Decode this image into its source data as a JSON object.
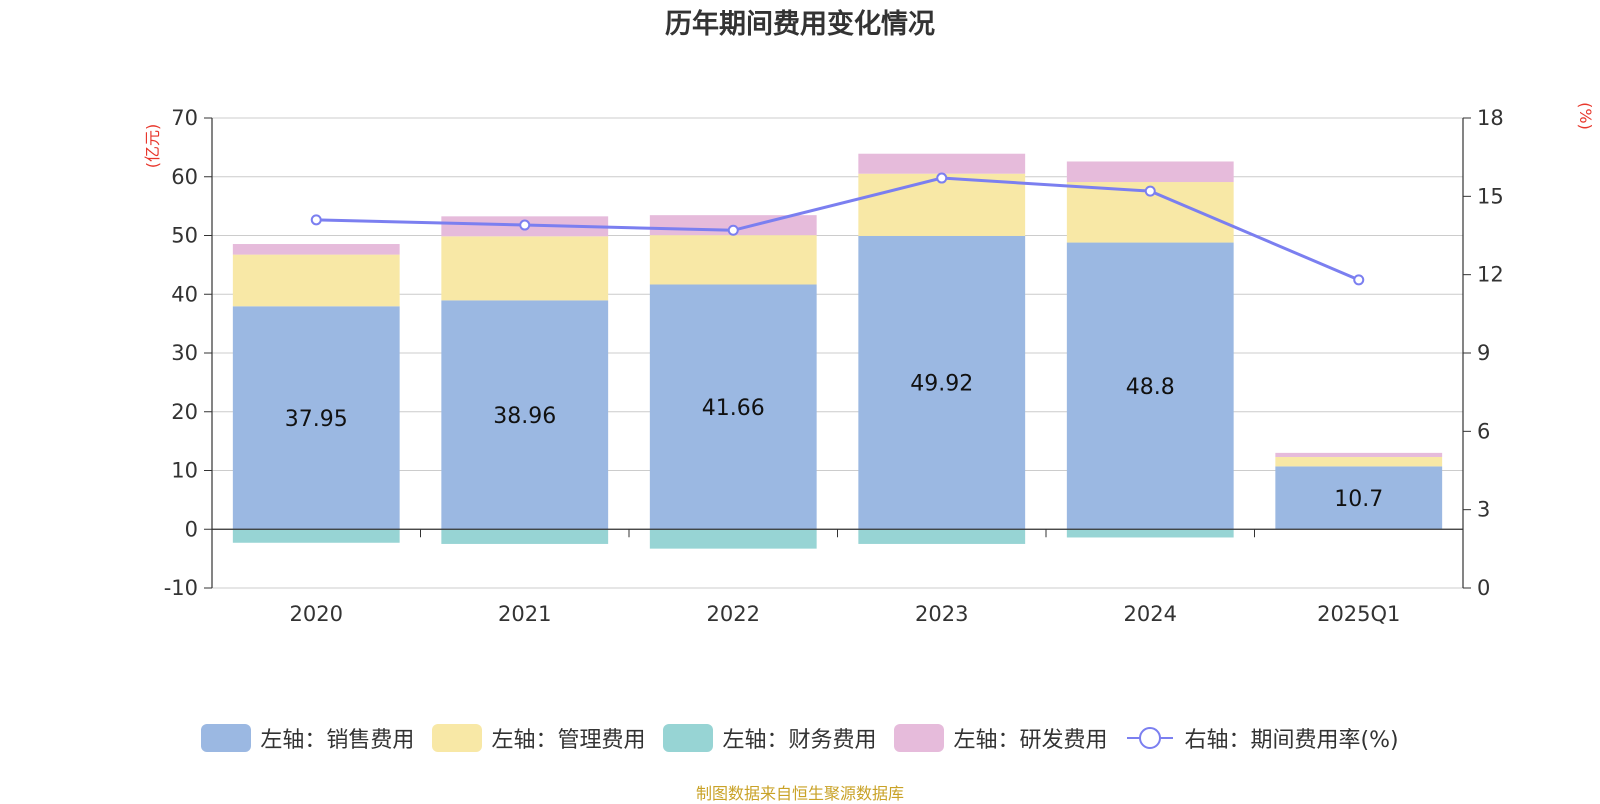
{
  "chart_data": {
    "type": "bar",
    "stacked": true,
    "title": "历年期间费用变化情况",
    "categories": [
      "2020",
      "2021",
      "2022",
      "2023",
      "2024",
      "2025Q1"
    ],
    "left_axis": {
      "unit": "(亿元)",
      "min": -10,
      "max": 70,
      "ticks": [
        -10,
        0,
        10,
        20,
        30,
        40,
        50,
        60,
        70
      ]
    },
    "right_axis": {
      "unit": "(%)",
      "min": 0,
      "max": 18,
      "ticks": [
        0,
        3,
        6,
        9,
        12,
        15,
        18
      ]
    },
    "series": [
      {
        "name": "左轴：销售费用",
        "axis": "left",
        "color": "#9bb8e2",
        "values": [
          37.95,
          38.96,
          41.66,
          49.92,
          48.8,
          10.7
        ],
        "labels": [
          "37.95",
          "38.96",
          "41.66",
          "49.92",
          "48.8",
          "10.7"
        ]
      },
      {
        "name": "左轴：管理费用",
        "axis": "left",
        "color": "#f8e8a6",
        "values": [
          8.8,
          10.9,
          8.4,
          10.6,
          10.3,
          1.6
        ]
      },
      {
        "name": "左轴：财务费用",
        "axis": "left",
        "color": "#97d4d4",
        "values": [
          -2.3,
          -2.5,
          -3.3,
          -2.5,
          -1.4,
          0
        ]
      },
      {
        "name": "左轴：研发费用",
        "axis": "left",
        "color": "#e6bbdb",
        "values": [
          1.8,
          3.4,
          3.4,
          3.4,
          3.5,
          0.7
        ]
      },
      {
        "name": "右轴：期间费用率(%)",
        "axis": "right",
        "type": "line",
        "color": "#7b7ff0",
        "values": [
          14.1,
          13.9,
          13.7,
          15.7,
          15.2,
          11.8
        ]
      }
    ],
    "grid": true,
    "legend_position": "bottom"
  },
  "source_note": "制图数据来自恒生聚源数据库"
}
